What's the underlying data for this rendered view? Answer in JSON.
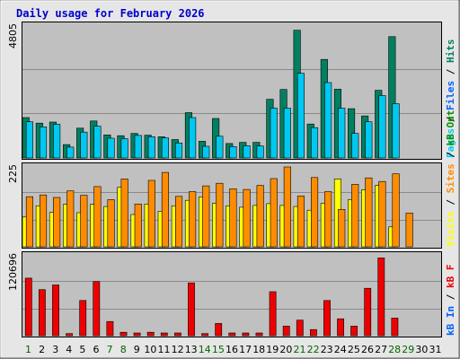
{
  "chart_data": {
    "type": "bar",
    "title": "Daily usage for February 2026",
    "title_color": "#0000cc",
    "x": [
      "1",
      "2",
      "3",
      "4",
      "5",
      "6",
      "7",
      "8",
      "9",
      "10",
      "11",
      "12",
      "13",
      "14",
      "15",
      "16",
      "17",
      "18",
      "19",
      "20",
      "21",
      "22",
      "23",
      "24",
      "25",
      "26",
      "27",
      "28",
      "29",
      "30",
      "31"
    ],
    "x_colors": [
      "#006600",
      "#000000",
      "#000000",
      "#000000",
      "#000000",
      "#000000",
      "#006600",
      "#006600",
      "#000000",
      "#000000",
      "#000000",
      "#000000",
      "#000000",
      "#006600",
      "#006600",
      "#000000",
      "#000000",
      "#000000",
      "#000000",
      "#000000",
      "#006600",
      "#006600",
      "#000000",
      "#000000",
      "#000000",
      "#000000",
      "#000000",
      "#006600",
      "#006600",
      "#000000",
      "#000000"
    ],
    "panels": [
      {
        "name": "hits-files",
        "ymax_label": "4805",
        "ylim": [
          0,
          4805
        ],
        "series": [
          {
            "name": "Hits",
            "color": "#008060",
            "values": [
              1450,
              1250,
              1290,
              480,
              1070,
              1330,
              830,
              800,
              880,
              820,
              760,
              660,
              1630,
              600,
              1420,
              520,
              560,
              560,
              2110,
              2460,
              4590,
              1220,
              3540,
              2470,
              1770,
              1510,
              2430,
              4360,
              0,
              0,
              0
            ]
          },
          {
            "name": "Files",
            "color": "#00c8f0",
            "values": [
              1300,
              1120,
              1210,
              390,
              930,
              1140,
              710,
              690,
              810,
              760,
              720,
              540,
              1450,
              420,
              780,
              410,
              440,
              430,
              1790,
              1790,
              3040,
              1090,
              2710,
              1790,
              880,
              1300,
              2240,
              1950,
              0,
              0,
              0
            ]
          }
        ],
        "side_labels": [
          {
            "text": "Pages",
            "color": "#00c8f0"
          },
          {
            "text": " / ",
            "color": "#000000"
          },
          {
            "text": "Files",
            "color": "#0060ff"
          },
          {
            "text": " / ",
            "color": "#000000"
          },
          {
            "text": "Hits",
            "color": "#008060"
          }
        ]
      },
      {
        "name": "sites-visits",
        "ymax_label": "225",
        "ylim": [
          0,
          225
        ],
        "series": [
          {
            "name": "Visits",
            "color": "#ffff00",
            "values": [
              82,
              113,
              95,
              117,
              94,
              117,
              111,
              164,
              89,
              118,
              98,
              113,
              128,
              137,
              120,
              113,
              109,
              114,
              119,
              114,
              111,
              101,
              120,
              187,
              130,
              157,
              169,
              55,
              0,
              0,
              0
            ]
          },
          {
            "name": "Sites",
            "color": "#ff8c00",
            "values": [
              138,
              143,
              136,
              154,
              142,
              166,
              130,
              187,
              118,
              183,
              205,
              139,
              152,
              168,
              175,
              160,
              158,
              169,
              188,
              220,
              140,
              191,
              152,
              103,
              172,
              190,
              180,
              201,
              93,
              0,
              0
            ]
          }
        ],
        "side_labels": [
          {
            "text": "Visits",
            "color": "#ffff00"
          },
          {
            "text": " / ",
            "color": "#000000"
          },
          {
            "text": "Sites",
            "color": "#ff8c00"
          },
          {
            "text": " / ",
            "color": "#000000"
          },
          {
            "text": "kB Out",
            "color": "#009000"
          }
        ]
      },
      {
        "name": "kbytes",
        "ymax_label": "120696",
        "ylim": [
          0,
          120696
        ],
        "series": [
          {
            "name": "kB F",
            "color": "#ee0000",
            "values": [
              85000,
              68000,
              75000,
              3000,
              52000,
              80000,
              21000,
              5000,
              4000,
              5000,
              4000,
              4000,
              78000,
              3000,
              18000,
              4000,
              4000,
              4000,
              65000,
              14000,
              23000,
              9000,
              52000,
              25000,
              14000,
              70000,
              115000,
              26000,
              0,
              0,
              0
            ]
          }
        ],
        "side_labels": [
          {
            "text": "kB In",
            "color": "#0060ff"
          },
          {
            "text": " / ",
            "color": "#000000"
          },
          {
            "text": "kB F",
            "color": "#ee0000"
          }
        ]
      }
    ]
  }
}
